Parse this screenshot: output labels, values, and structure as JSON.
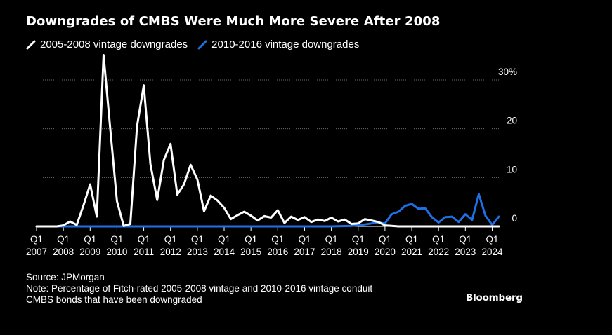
{
  "title": "Downgrades of CMBS Were Much More Severe After 2008",
  "legend": {
    "series1": "2005-2008 vintage downgrades",
    "series2": "2010-2016 vintage downgrades"
  },
  "source": "Source: JPMorgan",
  "note_line1": "Note: Percentage of Fitch-rated 2005-2008 vintage and 2010-2016 vintage conduit",
  "note_line2": "CMBS bonds that have been downgraded",
  "brand": "Bloomberg",
  "colors": {
    "series1": "#ffffff",
    "series2": "#1f6fe5",
    "grid": "#6b6b6b",
    "background": "#000000"
  },
  "chart_data": {
    "type": "line",
    "title": "Downgrades of CMBS Were Much More Severe After 2008",
    "x_start": "2007 Q1",
    "x_end": "2024 Q2",
    "ylim": [
      0,
      30
    ],
    "yticks": [
      {
        "value": 0,
        "label": "0"
      },
      {
        "value": 10,
        "label": "10"
      },
      {
        "value": 20,
        "label": "20"
      },
      {
        "value": 30,
        "label": "30%"
      }
    ],
    "xticks": [
      {
        "q": "Q1",
        "year": "2007"
      },
      {
        "q": "Q1",
        "year": "2008"
      },
      {
        "q": "Q1",
        "year": "2009"
      },
      {
        "q": "Q1",
        "year": "2010"
      },
      {
        "q": "Q1",
        "year": "2011"
      },
      {
        "q": "Q1",
        "year": "2012"
      },
      {
        "q": "Q1",
        "year": "2013"
      },
      {
        "q": "Q1",
        "year": "2014"
      },
      {
        "q": "Q1",
        "year": "2015"
      },
      {
        "q": "Q1",
        "year": "2016"
      },
      {
        "q": "Q1",
        "year": "2017"
      },
      {
        "q": "Q1",
        "year": "2018"
      },
      {
        "q": "Q1",
        "year": "2019"
      },
      {
        "q": "Q1",
        "year": "2020"
      },
      {
        "q": "Q1",
        "year": "2021"
      },
      {
        "q": "Q1",
        "year": "2022"
      },
      {
        "q": "Q1",
        "year": "2023"
      },
      {
        "q": "Q1",
        "year": "2024"
      }
    ],
    "grid": true,
    "legend_position": "top-left",
    "series": [
      {
        "name": "2005-2008 vintage downgrades",
        "color": "#ffffff",
        "points": [
          [
            "2007 Q1",
            0
          ],
          [
            "2007 Q2",
            0
          ],
          [
            "2007 Q3",
            0
          ],
          [
            "2007 Q4",
            0
          ],
          [
            "2008 Q1",
            0.2
          ],
          [
            "2008 Q2",
            1.0
          ],
          [
            "2008 Q3",
            0.3
          ],
          [
            "2008 Q4",
            4.3
          ],
          [
            "2009 Q1",
            8.6
          ],
          [
            "2009 Q2",
            2.0
          ],
          [
            "2009 Q3",
            35.1
          ],
          [
            "2009 Q4",
            20.0
          ],
          [
            "2010 Q1",
            5.2
          ],
          [
            "2010 Q2",
            0.1
          ],
          [
            "2010 Q3",
            0.5
          ],
          [
            "2010 Q4",
            20.5
          ],
          [
            "2011 Q1",
            28.9
          ],
          [
            "2011 Q2",
            12.7
          ],
          [
            "2011 Q3",
            5.4
          ],
          [
            "2011 Q4",
            13.6
          ],
          [
            "2012 Q1",
            16.9
          ],
          [
            "2012 Q2",
            6.5
          ],
          [
            "2012 Q3",
            8.6
          ],
          [
            "2012 Q4",
            12.6
          ],
          [
            "2013 Q1",
            9.6
          ],
          [
            "2013 Q2",
            3.1
          ],
          [
            "2013 Q3",
            6.3
          ],
          [
            "2013 Q4",
            5.3
          ],
          [
            "2014 Q1",
            3.8
          ],
          [
            "2014 Q2",
            1.5
          ],
          [
            "2014 Q3",
            2.3
          ],
          [
            "2014 Q4",
            3.0
          ],
          [
            "2015 Q1",
            2.2
          ],
          [
            "2015 Q2",
            1.2
          ],
          [
            "2015 Q3",
            2.1
          ],
          [
            "2015 Q4",
            1.8
          ],
          [
            "2016 Q1",
            3.3
          ],
          [
            "2016 Q2",
            0.7
          ],
          [
            "2016 Q3",
            2.0
          ],
          [
            "2016 Q4",
            1.3
          ],
          [
            "2017 Q1",
            1.9
          ],
          [
            "2017 Q2",
            0.9
          ],
          [
            "2017 Q3",
            1.4
          ],
          [
            "2017 Q4",
            1.1
          ],
          [
            "2018 Q1",
            1.8
          ],
          [
            "2018 Q2",
            1.0
          ],
          [
            "2018 Q3",
            1.4
          ],
          [
            "2018 Q4",
            0.5
          ],
          [
            "2019 Q1",
            0.6
          ],
          [
            "2019 Q2",
            1.5
          ],
          [
            "2019 Q3",
            1.2
          ],
          [
            "2019 Q4",
            0.9
          ],
          [
            "2020 Q1",
            0.2
          ],
          [
            "2020 Q2",
            0.1
          ],
          [
            "2020 Q3",
            0
          ],
          [
            "2020 Q4",
            0
          ],
          [
            "2021 Q1",
            0
          ],
          [
            "2021 Q2",
            0
          ],
          [
            "2021 Q3",
            0
          ],
          [
            "2021 Q4",
            0
          ],
          [
            "2022 Q1",
            0
          ],
          [
            "2022 Q2",
            0
          ],
          [
            "2022 Q3",
            0
          ],
          [
            "2022 Q4",
            0
          ],
          [
            "2023 Q1",
            0
          ],
          [
            "2023 Q2",
            0
          ],
          [
            "2023 Q3",
            0
          ],
          [
            "2023 Q4",
            0
          ],
          [
            "2024 Q1",
            0
          ],
          [
            "2024 Q2",
            0
          ]
        ]
      },
      {
        "name": "2010-2016 vintage downgrades",
        "color": "#1f6fe5",
        "points": [
          [
            "2007 Q1",
            0
          ],
          [
            "2008 Q1",
            0
          ],
          [
            "2009 Q1",
            0
          ],
          [
            "2010 Q1",
            0
          ],
          [
            "2011 Q1",
            0
          ],
          [
            "2012 Q1",
            0
          ],
          [
            "2013 Q1",
            0
          ],
          [
            "2014 Q1",
            0
          ],
          [
            "2015 Q1",
            0
          ],
          [
            "2016 Q1",
            0
          ],
          [
            "2017 Q1",
            0
          ],
          [
            "2018 Q1",
            0
          ],
          [
            "2018 Q4",
            0.1
          ],
          [
            "2019 Q1",
            0.2
          ],
          [
            "2019 Q2",
            0.4
          ],
          [
            "2019 Q3",
            0.6
          ],
          [
            "2019 Q4",
            0.8
          ],
          [
            "2020 Q1",
            0.6
          ],
          [
            "2020 Q2",
            2.5
          ],
          [
            "2020 Q3",
            3.0
          ],
          [
            "2020 Q4",
            4.2
          ],
          [
            "2021 Q1",
            4.6
          ],
          [
            "2021 Q2",
            3.6
          ],
          [
            "2021 Q3",
            3.7
          ],
          [
            "2021 Q4",
            1.9
          ],
          [
            "2022 Q1",
            0.8
          ],
          [
            "2022 Q2",
            1.9
          ],
          [
            "2022 Q3",
            2.0
          ],
          [
            "2022 Q4",
            0.9
          ],
          [
            "2023 Q1",
            2.5
          ],
          [
            "2023 Q2",
            1.3
          ],
          [
            "2023 Q3",
            6.6
          ],
          [
            "2023 Q4",
            2.2
          ],
          [
            "2024 Q1",
            0.3
          ],
          [
            "2024 Q2",
            2.0
          ]
        ]
      }
    ]
  }
}
